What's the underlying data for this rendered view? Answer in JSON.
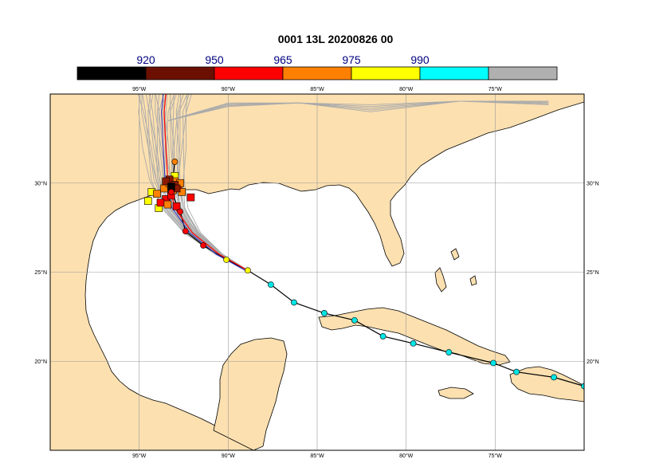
{
  "title": "0001 13L 20200826 00",
  "colorbar": {
    "segments": [
      {
        "color": "#000000"
      },
      {
        "color": "#6b1000"
      },
      {
        "color": "#ff0000"
      },
      {
        "color": "#ff8000"
      },
      {
        "color": "#ffff00"
      },
      {
        "color": "#00ffff"
      },
      {
        "color": "#b0b0b0"
      }
    ],
    "labels": [
      "920",
      "950",
      "965",
      "975",
      "990"
    ]
  },
  "map": {
    "projection": "cylindrical",
    "lon_range": [
      -100,
      -70
    ],
    "lat_range": [
      15,
      35
    ],
    "land_color": "#fce0b0",
    "ocean_color": "#ffffff",
    "grid_color": "#999999",
    "x_ticks_top": [
      "95°W",
      "90°W",
      "85°W",
      "80°W",
      "75°W"
    ],
    "x_ticks_bottom": [
      "95°W",
      "90°W",
      "85°W",
      "80°W",
      "75°W"
    ],
    "y_ticks": [
      "30°N",
      "25°N",
      "20°N"
    ]
  },
  "observed_track": {
    "color": "#000000",
    "points": [
      {
        "lon": -70.0,
        "lat": 18.6,
        "cat": "cyan"
      },
      {
        "lon": -71.7,
        "lat": 19.1,
        "cat": "cyan"
      },
      {
        "lon": -73.8,
        "lat": 19.4,
        "cat": "cyan"
      },
      {
        "lon": -75.1,
        "lat": 19.9,
        "cat": "cyan"
      },
      {
        "lon": -77.6,
        "lat": 20.5,
        "cat": "cyan"
      },
      {
        "lon": -79.6,
        "lat": 21.0,
        "cat": "cyan"
      },
      {
        "lon": -81.3,
        "lat": 21.4,
        "cat": "cyan"
      },
      {
        "lon": -82.9,
        "lat": 22.3,
        "cat": "cyan"
      },
      {
        "lon": -84.6,
        "lat": 22.7,
        "cat": "cyan"
      },
      {
        "lon": -86.3,
        "lat": 23.3,
        "cat": "cyan"
      },
      {
        "lon": -87.6,
        "lat": 24.3,
        "cat": "cyan"
      },
      {
        "lon": -88.9,
        "lat": 25.1,
        "cat": "yellow"
      },
      {
        "lon": -90.1,
        "lat": 25.7,
        "cat": "yellow"
      },
      {
        "lon": -91.4,
        "lat": 26.5,
        "cat": "red"
      },
      {
        "lon": -92.4,
        "lat": 27.3,
        "cat": "red"
      },
      {
        "lon": -92.7,
        "lat": 28.4,
        "cat": "red"
      },
      {
        "lon": -93.2,
        "lat": 29.5,
        "cat": "red"
      },
      {
        "lon": -93.0,
        "lat": 31.2,
        "cat": "orange"
      }
    ]
  },
  "forecast_mean_track": {
    "color": "#ff0000",
    "points": [
      {
        "lon": -88.9,
        "lat": 25.1
      },
      {
        "lon": -90.5,
        "lat": 26.0
      },
      {
        "lon": -92.0,
        "lat": 27.2
      },
      {
        "lon": -93.0,
        "lat": 28.6
      },
      {
        "lon": -93.4,
        "lat": 30.2
      },
      {
        "lon": -93.5,
        "lat": 32.0
      },
      {
        "lon": -93.6,
        "lat": 34.0
      },
      {
        "lon": -93.5,
        "lat": 35.0
      }
    ]
  },
  "landfall_markers": [
    {
      "lon": -94.3,
      "lat": 29.5,
      "cat": "yellow"
    },
    {
      "lon": -94.5,
      "lat": 29.0,
      "cat": "yellow"
    },
    {
      "lon": -93.9,
      "lat": 28.6,
      "cat": "yellow"
    },
    {
      "lon": -93.0,
      "lat": 30.4,
      "cat": "yellow"
    },
    {
      "lon": -92.1,
      "lat": 29.2,
      "cat": "red"
    },
    {
      "lon": -93.5,
      "lat": 29.1,
      "cat": "red"
    },
    {
      "lon": -93.8,
      "lat": 28.9,
      "cat": "red"
    },
    {
      "lon": -92.9,
      "lat": 28.7,
      "cat": "red"
    },
    {
      "lon": -93.2,
      "lat": 29.3,
      "cat": "red"
    },
    {
      "lon": -92.8,
      "lat": 29.8,
      "cat": "red"
    },
    {
      "lon": -93.0,
      "lat": 30.1,
      "cat": "orange"
    },
    {
      "lon": -93.6,
      "lat": 29.7,
      "cat": "orange"
    },
    {
      "lon": -93.3,
      "lat": 30.0,
      "cat": "orange"
    },
    {
      "lon": -92.6,
      "lat": 29.5,
      "cat": "orange"
    },
    {
      "lon": -93.1,
      "lat": 29.6,
      "cat": "orange"
    },
    {
      "lon": -94.0,
      "lat": 29.4,
      "cat": "orange"
    },
    {
      "lon": -93.4,
      "lat": 28.8,
      "cat": "orange"
    },
    {
      "lon": -92.7,
      "lat": 30.0,
      "cat": "orange"
    },
    {
      "lon": -93.3,
      "lat": 30.2,
      "cat": "darkred"
    },
    {
      "lon": -93.0,
      "lat": 29.9,
      "cat": "darkred"
    },
    {
      "lon": -93.5,
      "lat": 30.1,
      "cat": "darkred"
    },
    {
      "lon": -92.9,
      "lat": 29.7,
      "cat": "darkred"
    },
    {
      "lon": -93.2,
      "lat": 29.8,
      "cat": "black"
    }
  ]
}
